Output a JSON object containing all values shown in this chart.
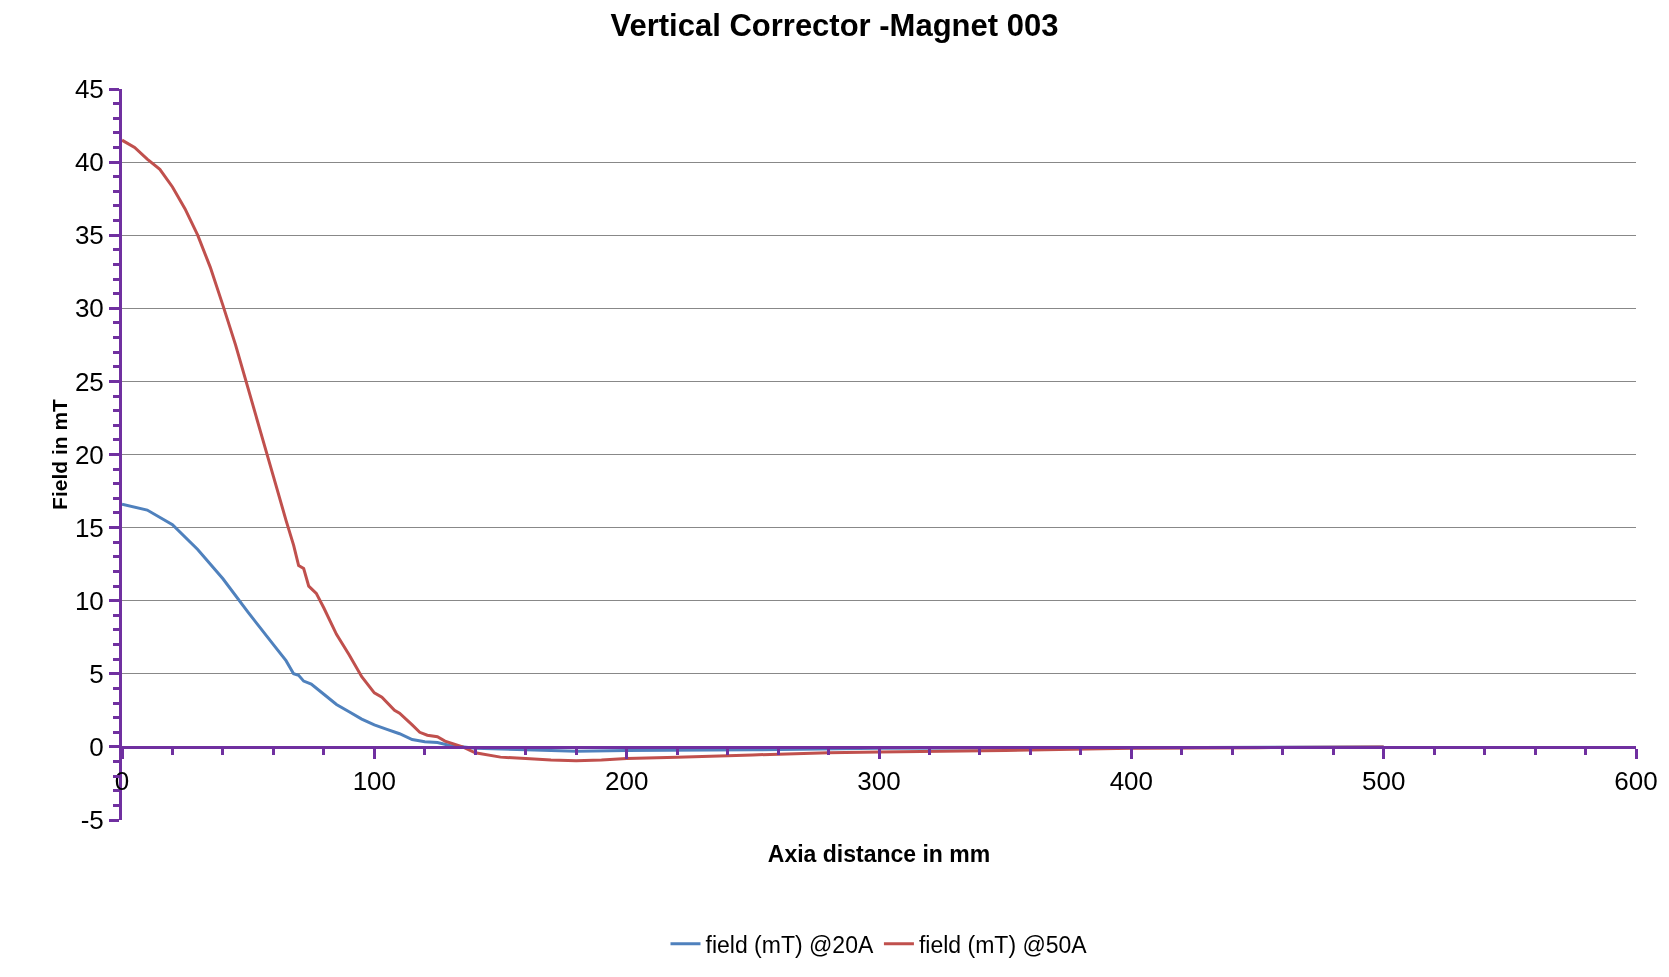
{
  "chart_data": {
    "type": "line",
    "title": "Vertical Corrector -Magnet 003",
    "xlabel": "Axia distance in mm",
    "ylabel": "Field in mT",
    "xlim": [
      0,
      600
    ],
    "xticks": [
      0,
      100,
      200,
      300,
      400,
      500,
      600
    ],
    "ylim": [
      -5,
      45
    ],
    "yticks": [
      -5,
      0,
      5,
      10,
      15,
      20,
      25,
      30,
      35,
      40,
      45
    ],
    "grid": "y",
    "legend": "bottom",
    "marker": "none",
    "line_style": "solid",
    "series": [
      {
        "name": "field (mT) @20A",
        "color": "#4f81bd",
        "x": [
          0,
          10,
          20,
          30,
          40,
          50,
          60,
          65,
          68,
          70,
          72,
          75,
          80,
          85,
          90,
          95,
          100,
          105,
          110,
          115,
          120,
          125,
          130,
          140,
          160,
          180,
          200,
          250,
          300,
          400,
          500
        ],
        "values": [
          16.6,
          16.2,
          15.2,
          13.5,
          11.5,
          9.2,
          7,
          5.9,
          5,
          4.9,
          4.5,
          4.3,
          3.6,
          2.9,
          2.4,
          1.9,
          1.5,
          1.2,
          0.9,
          0.5,
          0.35,
          0.3,
          0.1,
          -0.1,
          -0.2,
          -0.3,
          -0.25,
          -0.2,
          -0.1,
          -0.05,
          0
        ]
      },
      {
        "name": "field (mT) @50A",
        "color": "#c0504d",
        "x": [
          0,
          5,
          10,
          15,
          20,
          25,
          30,
          35,
          40,
          45,
          50,
          55,
          60,
          65,
          68,
          70,
          72,
          74,
          77,
          80,
          85,
          90,
          95,
          100,
          103,
          108,
          110,
          115,
          118,
          121,
          125,
          128,
          135,
          140,
          150,
          160,
          170,
          180,
          190,
          200,
          220,
          250,
          280,
          300,
          350,
          400,
          450,
          500
        ],
        "values": [
          41.5,
          41,
          40.2,
          39.5,
          38.3,
          36.8,
          35,
          32.8,
          30.2,
          27.5,
          24.5,
          21.5,
          18.5,
          15.5,
          13.8,
          12.4,
          12.2,
          11,
          10.5,
          9.5,
          7.7,
          6.3,
          4.8,
          3.7,
          3.4,
          2.5,
          2.3,
          1.5,
          1,
          0.8,
          0.7,
          0.4,
          0,
          -0.4,
          -0.7,
          -0.8,
          -0.9,
          -0.95,
          -0.9,
          -0.8,
          -0.7,
          -0.55,
          -0.4,
          -0.35,
          -0.25,
          -0.1,
          -0.05,
          0
        ]
      }
    ]
  }
}
